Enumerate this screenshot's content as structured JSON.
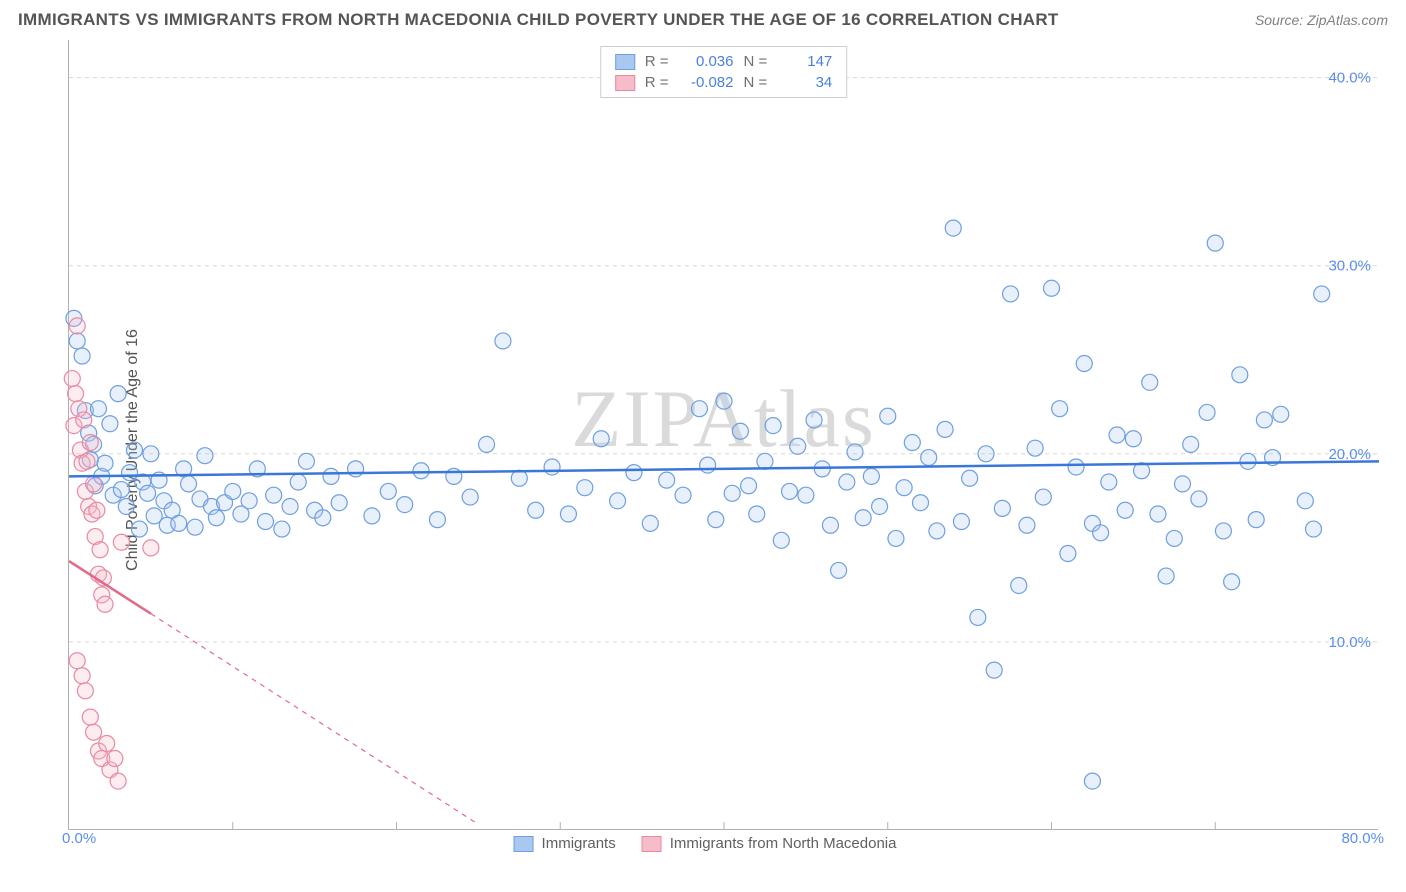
{
  "title": "IMMIGRANTS VS IMMIGRANTS FROM NORTH MACEDONIA CHILD POVERTY UNDER THE AGE OF 16 CORRELATION CHART",
  "source": "Source: ZipAtlas.com",
  "ylabel": "Child Poverty Under the Age of 16",
  "watermark": "ZIPAtlas",
  "chart": {
    "type": "scatter",
    "xlim": [
      0,
      80
    ],
    "ylim": [
      0,
      42
    ],
    "xticks": [
      0,
      80
    ],
    "xtick_labels": [
      "0.0%",
      "80.0%"
    ],
    "yticks": [
      10,
      20,
      30,
      40
    ],
    "ytick_labels": [
      "10.0%",
      "20.0%",
      "30.0%",
      "40.0%"
    ],
    "x_minor_ticks": [
      10,
      20,
      30,
      40,
      50,
      60,
      70
    ],
    "grid_color": "#d8d8d8",
    "background_color": "#ffffff",
    "marker_radius": 8,
    "series": [
      {
        "name": "Immigrants",
        "legend_label": "Immigrants",
        "R": "0.036",
        "N": "147",
        "color_fill": "#a9c8f0",
        "color_stroke": "#6f9fe0",
        "trend": {
          "y_start": 18.8,
          "y_end": 19.6,
          "color": "#3a77d8"
        },
        "points": [
          [
            0.3,
            27.2
          ],
          [
            0.5,
            26.0
          ],
          [
            0.8,
            25.2
          ],
          [
            1.0,
            22.3
          ],
          [
            1.2,
            21.1
          ],
          [
            1.3,
            19.7
          ],
          [
            1.5,
            20.5
          ],
          [
            1.6,
            18.3
          ],
          [
            1.8,
            22.4
          ],
          [
            2.0,
            18.8
          ],
          [
            2.2,
            19.5
          ],
          [
            2.5,
            21.6
          ],
          [
            2.7,
            17.8
          ],
          [
            3.0,
            23.2
          ],
          [
            3.2,
            18.1
          ],
          [
            3.5,
            17.2
          ],
          [
            3.7,
            19.0
          ],
          [
            4.0,
            20.2
          ],
          [
            4.3,
            16.0
          ],
          [
            4.5,
            18.5
          ],
          [
            4.8,
            17.9
          ],
          [
            5.0,
            20.0
          ],
          [
            5.2,
            16.7
          ],
          [
            5.5,
            18.6
          ],
          [
            5.8,
            17.5
          ],
          [
            6.0,
            16.2
          ],
          [
            6.3,
            17.0
          ],
          [
            6.7,
            16.3
          ],
          [
            7.0,
            19.2
          ],
          [
            7.3,
            18.4
          ],
          [
            7.7,
            16.1
          ],
          [
            8.0,
            17.6
          ],
          [
            8.3,
            19.9
          ],
          [
            8.7,
            17.2
          ],
          [
            9.0,
            16.6
          ],
          [
            9.5,
            17.4
          ],
          [
            10.0,
            18.0
          ],
          [
            10.5,
            16.8
          ],
          [
            11.0,
            17.5
          ],
          [
            11.5,
            19.2
          ],
          [
            12.0,
            16.4
          ],
          [
            12.5,
            17.8
          ],
          [
            13.0,
            16.0
          ],
          [
            13.5,
            17.2
          ],
          [
            14.0,
            18.5
          ],
          [
            14.5,
            19.6
          ],
          [
            15.0,
            17.0
          ],
          [
            15.5,
            16.6
          ],
          [
            16.0,
            18.8
          ],
          [
            16.5,
            17.4
          ],
          [
            17.5,
            19.2
          ],
          [
            18.5,
            16.7
          ],
          [
            19.5,
            18.0
          ],
          [
            20.5,
            17.3
          ],
          [
            21.5,
            19.1
          ],
          [
            22.5,
            16.5
          ],
          [
            23.5,
            18.8
          ],
          [
            24.5,
            17.7
          ],
          [
            25.5,
            20.5
          ],
          [
            26.5,
            26.0
          ],
          [
            27.5,
            18.7
          ],
          [
            28.5,
            17.0
          ],
          [
            29.5,
            19.3
          ],
          [
            30.5,
            16.8
          ],
          [
            31.5,
            18.2
          ],
          [
            32.5,
            20.8
          ],
          [
            33.5,
            17.5
          ],
          [
            34.5,
            19.0
          ],
          [
            35.5,
            16.3
          ],
          [
            36.5,
            18.6
          ],
          [
            37.5,
            17.8
          ],
          [
            38.5,
            22.4
          ],
          [
            39.0,
            19.4
          ],
          [
            39.5,
            16.5
          ],
          [
            40.0,
            22.8
          ],
          [
            40.5,
            17.9
          ],
          [
            41.0,
            21.2
          ],
          [
            41.5,
            18.3
          ],
          [
            42.0,
            16.8
          ],
          [
            42.5,
            19.6
          ],
          [
            43.0,
            21.5
          ],
          [
            43.5,
            15.4
          ],
          [
            44.0,
            18.0
          ],
          [
            44.5,
            20.4
          ],
          [
            45.0,
            17.8
          ],
          [
            45.5,
            21.8
          ],
          [
            46.0,
            19.2
          ],
          [
            46.5,
            16.2
          ],
          [
            47.0,
            13.8
          ],
          [
            47.5,
            18.5
          ],
          [
            48.0,
            20.1
          ],
          [
            48.5,
            16.6
          ],
          [
            49.0,
            18.8
          ],
          [
            49.5,
            17.2
          ],
          [
            50.0,
            22.0
          ],
          [
            50.5,
            15.5
          ],
          [
            51.0,
            18.2
          ],
          [
            51.5,
            20.6
          ],
          [
            52.0,
            17.4
          ],
          [
            52.5,
            19.8
          ],
          [
            53.0,
            15.9
          ],
          [
            53.5,
            21.3
          ],
          [
            54.0,
            32.0
          ],
          [
            54.5,
            16.4
          ],
          [
            55.0,
            18.7
          ],
          [
            55.5,
            11.3
          ],
          [
            56.0,
            20.0
          ],
          [
            56.5,
            8.5
          ],
          [
            57.0,
            17.1
          ],
          [
            57.5,
            28.5
          ],
          [
            58.0,
            13.0
          ],
          [
            58.5,
            16.2
          ],
          [
            59.0,
            20.3
          ],
          [
            59.5,
            17.7
          ],
          [
            60.0,
            28.8
          ],
          [
            60.5,
            22.4
          ],
          [
            61.0,
            14.7
          ],
          [
            61.5,
            19.3
          ],
          [
            62.0,
            24.8
          ],
          [
            62.5,
            16.3
          ],
          [
            63.0,
            15.8
          ],
          [
            63.5,
            18.5
          ],
          [
            64.0,
            21.0
          ],
          [
            64.5,
            17.0
          ],
          [
            65.0,
            20.8
          ],
          [
            65.5,
            19.1
          ],
          [
            66.0,
            23.8
          ],
          [
            66.5,
            16.8
          ],
          [
            67.0,
            13.5
          ],
          [
            67.5,
            15.5
          ],
          [
            68.0,
            18.4
          ],
          [
            68.5,
            20.5
          ],
          [
            69.0,
            17.6
          ],
          [
            69.5,
            22.2
          ],
          [
            70.0,
            31.2
          ],
          [
            70.5,
            15.9
          ],
          [
            71.0,
            13.2
          ],
          [
            71.5,
            24.2
          ],
          [
            72.0,
            19.6
          ],
          [
            72.5,
            16.5
          ],
          [
            73.0,
            21.8
          ],
          [
            73.5,
            19.8
          ],
          [
            74.0,
            22.1
          ],
          [
            62.5,
            2.6
          ],
          [
            75.5,
            17.5
          ],
          [
            76.0,
            16.0
          ],
          [
            76.5,
            28.5
          ]
        ]
      },
      {
        "name": "Immigrants from North Macedonia",
        "legend_label": "Immigrants from North Macedonia",
        "R": "-0.082",
        "N": "34",
        "color_fill": "#f7bcc9",
        "color_stroke": "#e88aa0",
        "trend": {
          "y_start": 14.3,
          "y_end_at_x": 25,
          "y_end": 0.3,
          "color": "#e26a86",
          "solid_until_x": 5
        },
        "points": [
          [
            0.2,
            24.0
          ],
          [
            0.3,
            21.5
          ],
          [
            0.4,
            23.2
          ],
          [
            0.5,
            26.8
          ],
          [
            0.6,
            22.4
          ],
          [
            0.7,
            20.2
          ],
          [
            0.8,
            19.5
          ],
          [
            0.9,
            21.8
          ],
          [
            1.0,
            18.0
          ],
          [
            1.1,
            19.6
          ],
          [
            1.2,
            17.2
          ],
          [
            1.3,
            20.6
          ],
          [
            1.4,
            16.8
          ],
          [
            1.5,
            18.4
          ],
          [
            1.6,
            15.6
          ],
          [
            1.7,
            17.0
          ],
          [
            1.8,
            13.6
          ],
          [
            1.9,
            14.9
          ],
          [
            2.0,
            12.5
          ],
          [
            2.1,
            13.4
          ],
          [
            2.2,
            12.0
          ],
          [
            0.5,
            9.0
          ],
          [
            0.8,
            8.2
          ],
          [
            1.0,
            7.4
          ],
          [
            1.3,
            6.0
          ],
          [
            1.5,
            5.2
          ],
          [
            1.8,
            4.2
          ],
          [
            2.0,
            3.8
          ],
          [
            2.3,
            4.6
          ],
          [
            2.5,
            3.2
          ],
          [
            2.8,
            3.8
          ],
          [
            3.2,
            15.3
          ],
          [
            3.0,
            2.6
          ],
          [
            5.0,
            15.0
          ]
        ]
      }
    ]
  },
  "stats_legend": {
    "r_label": "R =",
    "n_label": "N ="
  }
}
